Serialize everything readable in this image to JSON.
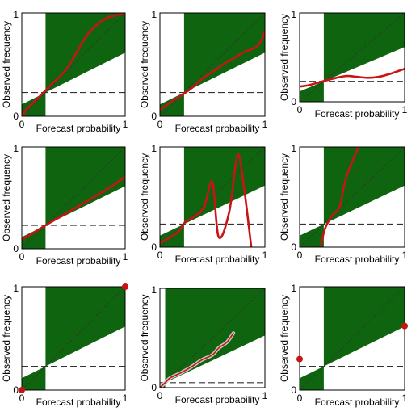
{
  "colors": {
    "skill_region": "#0f650f",
    "curve": "#c81414",
    "curve_halo": "#c9c9c9",
    "frame": "#000000",
    "diagonal": "#333333",
    "climatology": "#333333"
  },
  "axis_text": {
    "xlabel": "Forecast probability",
    "ylabel": "Observed frequency",
    "x_min_label": "0",
    "x_max_label": "1",
    "y_min_label": "0",
    "y_max_label": "1"
  },
  "chart_data": [
    {
      "type": "line",
      "climatology": 0.23,
      "series": [
        {
          "x": [
            0,
            0.05,
            0.12,
            0.23,
            0.3,
            0.42,
            0.52,
            0.62,
            0.72,
            0.82,
            0.92,
            1.0
          ],
          "y": [
            0,
            0.07,
            0.14,
            0.25,
            0.32,
            0.44,
            0.6,
            0.77,
            0.88,
            0.95,
            0.98,
            1.0
          ]
        }
      ],
      "markers": [],
      "xlim": [
        0,
        1
      ],
      "ylim": [
        0,
        1
      ]
    },
    {
      "type": "line",
      "climatology": 0.23,
      "series": [
        {
          "x": [
            0,
            0.08,
            0.2,
            0.3,
            0.4,
            0.5,
            0.6,
            0.7,
            0.8,
            0.9,
            0.96,
            1.0
          ],
          "y": [
            0.06,
            0.12,
            0.2,
            0.27,
            0.36,
            0.43,
            0.5,
            0.56,
            0.62,
            0.66,
            0.72,
            0.82
          ]
        }
      ],
      "markers": [],
      "xlim": [
        0,
        1
      ],
      "ylim": [
        0,
        1
      ]
    },
    {
      "type": "line",
      "climatology": 0.23,
      "series": [
        {
          "x": [
            0,
            0.1,
            0.22,
            0.35,
            0.45,
            0.55,
            0.65,
            0.75,
            0.85,
            0.95,
            1.0
          ],
          "y": [
            0.17,
            0.19,
            0.23,
            0.27,
            0.29,
            0.28,
            0.27,
            0.28,
            0.31,
            0.35,
            0.37
          ]
        }
      ],
      "markers": [],
      "xlim": [
        0,
        1
      ],
      "ylim": [
        0,
        1
      ]
    },
    {
      "type": "line",
      "climatology": 0.23,
      "series": [
        {
          "x": [
            0,
            0.1,
            0.23,
            0.4,
            0.6,
            0.8,
            0.95,
            1.0
          ],
          "y": [
            0.09,
            0.15,
            0.23,
            0.33,
            0.45,
            0.57,
            0.67,
            0.71
          ]
        }
      ],
      "markers": [],
      "xlim": [
        0,
        1
      ],
      "ylim": [
        0,
        1
      ]
    },
    {
      "type": "line",
      "climatology": 0.23,
      "series": [
        {
          "x": [
            0,
            0.1,
            0.18,
            0.24,
            0.32,
            0.42,
            0.5,
            0.56,
            0.66,
            0.74,
            0.8,
            0.87
          ],
          "y": [
            0.04,
            0.1,
            0.16,
            0.25,
            0.3,
            0.4,
            0.65,
            0.1,
            0.35,
            0.92,
            0.6,
            0.0
          ]
        }
      ],
      "markers": [],
      "xlim": [
        0,
        1
      ],
      "ylim": [
        0,
        1
      ]
    },
    {
      "type": "line",
      "climatology": 0.23,
      "series": [
        {
          "x": [
            0.2,
            0.24,
            0.3,
            0.38,
            0.42,
            0.46,
            0.5,
            0.56
          ],
          "y": [
            0,
            0.18,
            0.3,
            0.4,
            0.6,
            0.75,
            0.85,
            1.0
          ]
        }
      ],
      "markers": [],
      "xlim": [
        0,
        1
      ],
      "ylim": [
        0,
        1
      ]
    },
    {
      "type": "line",
      "climatology": 0.23,
      "series": [],
      "markers": [
        {
          "x": 0,
          "y": 0
        },
        {
          "x": 1,
          "y": 1
        }
      ],
      "xlim": [
        0,
        1
      ],
      "ylim": [
        0,
        1
      ]
    },
    {
      "type": "line",
      "climatology": 0.05,
      "series": [
        {
          "x": [
            0,
            0.05,
            0.1,
            0.2,
            0.3,
            0.4,
            0.5,
            0.56,
            0.64,
            0.7
          ],
          "y": [
            0.0,
            0.05,
            0.1,
            0.15,
            0.21,
            0.28,
            0.33,
            0.4,
            0.46,
            0.55
          ]
        }
      ],
      "markers": [],
      "xlim": [
        0,
        1
      ],
      "ylim": [
        0,
        1
      ]
    },
    {
      "type": "line",
      "climatology": 0.23,
      "series": [],
      "markers": [
        {
          "x": 0,
          "y": 0.3
        },
        {
          "x": 1,
          "y": 0.62
        }
      ],
      "xlim": [
        0,
        1
      ],
      "ylim": [
        0,
        1
      ]
    }
  ]
}
